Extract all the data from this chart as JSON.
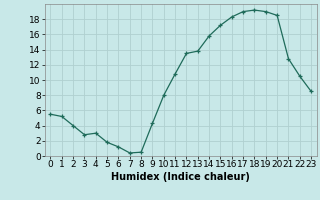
{
  "x": [
    0,
    1,
    2,
    3,
    4,
    5,
    6,
    7,
    8,
    9,
    10,
    11,
    12,
    13,
    14,
    15,
    16,
    17,
    18,
    19,
    20,
    21,
    22,
    23
  ],
  "y": [
    5.5,
    5.2,
    4.0,
    2.8,
    3.0,
    1.8,
    1.2,
    0.4,
    0.5,
    4.3,
    8.0,
    10.8,
    13.5,
    13.8,
    15.8,
    17.2,
    18.3,
    19.0,
    19.2,
    19.0,
    18.5,
    12.8,
    10.5,
    8.5
  ],
  "title": "",
  "xlabel": "Humidex (Indice chaleur)",
  "ylabel": "",
  "line_color": "#1f6b5a",
  "marker_color": "#1f6b5a",
  "bg_color": "#c8e8e8",
  "grid_color": "#b0d0d0",
  "xlim": [
    -0.5,
    23.5
  ],
  "ylim": [
    0,
    20
  ],
  "yticks": [
    0,
    2,
    4,
    6,
    8,
    10,
    12,
    14,
    16,
    18
  ],
  "xticks": [
    0,
    1,
    2,
    3,
    4,
    5,
    6,
    7,
    8,
    9,
    10,
    11,
    12,
    13,
    14,
    15,
    16,
    17,
    18,
    19,
    20,
    21,
    22,
    23
  ],
  "xlabel_fontsize": 7.0,
  "tick_fontsize": 6.5
}
